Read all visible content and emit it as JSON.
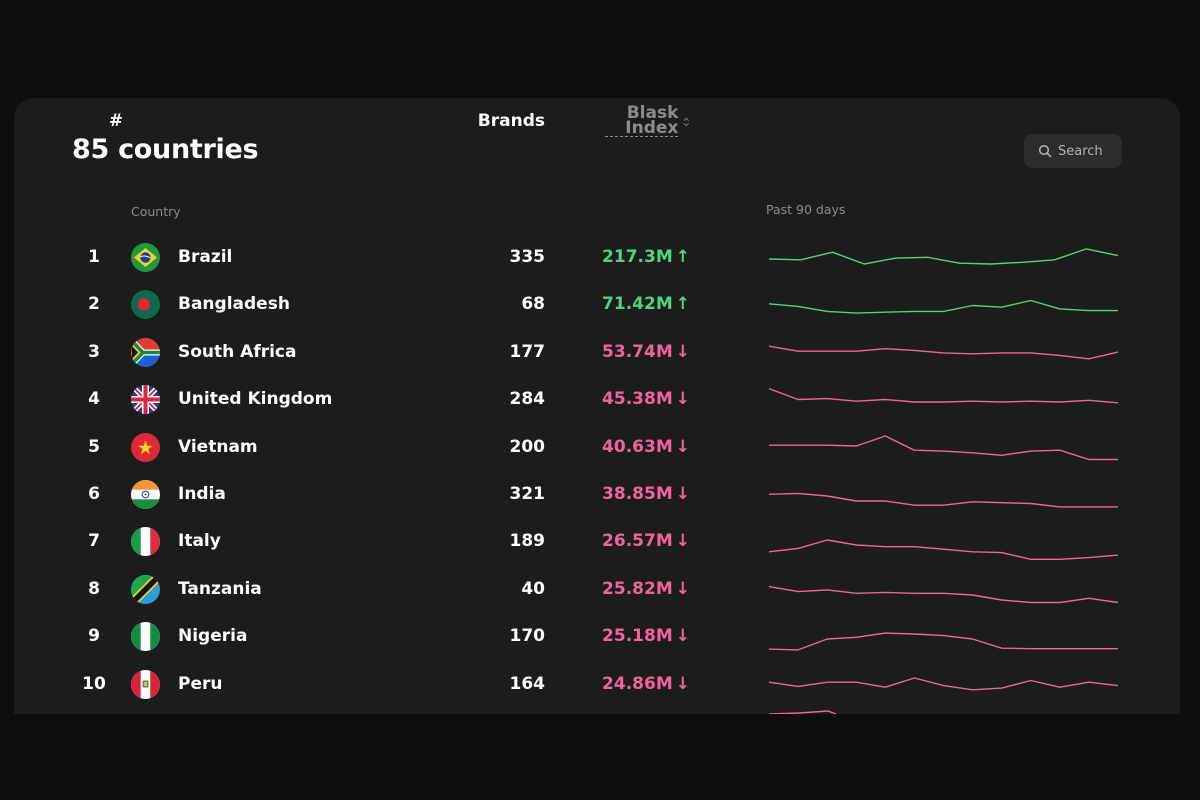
{
  "header": {
    "title": "85 countries",
    "search_label": "Search"
  },
  "columns": {
    "rank": "#",
    "country": "Country",
    "brands": "Brands",
    "blask": "Blask Index",
    "trend": "Past 90 days"
  },
  "rows": [
    {
      "rank": "1",
      "country": "Brazil",
      "brands": "335",
      "blask": "217.3M",
      "arrow": "↑",
      "direction": "up",
      "flag": "brazil-flag-icon",
      "trend": [
        62,
        60,
        78,
        50,
        64,
        66,
        52,
        50,
        54,
        60,
        86,
        70
      ]
    },
    {
      "rank": "2",
      "country": "Bangladesh",
      "brands": "68",
      "blask": "71.42M",
      "arrow": "↑",
      "direction": "up",
      "flag": "bangladesh-flag-icon",
      "trend": [
        68,
        62,
        50,
        46,
        48,
        50,
        50,
        64,
        60,
        76,
        56,
        52,
        52
      ]
    },
    {
      "rank": "3",
      "country": "South Africa",
      "brands": "177",
      "blask": "53.74M",
      "arrow": "↓",
      "direction": "down",
      "flag": "south-africa-flag-icon",
      "trend": [
        80,
        68,
        68,
        68,
        74,
        70,
        64,
        62,
        64,
        64,
        58,
        50,
        66
      ]
    },
    {
      "rank": "4",
      "country": "United Kingdom",
      "brands": "284",
      "blask": "45.38M",
      "arrow": "↓",
      "direction": "down",
      "flag": "uk-flag-icon",
      "trend": [
        92,
        66,
        68,
        62,
        66,
        60,
        60,
        62,
        60,
        62,
        60,
        64,
        58
      ]
    },
    {
      "rank": "5",
      "country": "Vietnam",
      "brands": "200",
      "blask": "40.63M",
      "arrow": "↓",
      "direction": "down",
      "flag": "vietnam-flag-icon",
      "trend": [
        70,
        70,
        70,
        68,
        92,
        58,
        56,
        52,
        46,
        56,
        58,
        36,
        36
      ]
    },
    {
      "rank": "6",
      "country": "India",
      "brands": "321",
      "blask": "38.85M",
      "arrow": "↓",
      "direction": "down",
      "flag": "india-flag-icon",
      "trend": [
        66,
        68,
        62,
        50,
        50,
        40,
        40,
        48,
        46,
        44,
        36,
        36,
        36
      ]
    },
    {
      "rank": "7",
      "country": "Italy",
      "brands": "189",
      "blask": "26.57M",
      "arrow": "↓",
      "direction": "down",
      "flag": "italy-flag-icon",
      "trend": [
        42,
        50,
        70,
        58,
        54,
        54,
        48,
        42,
        40,
        24,
        24,
        28,
        34
      ]
    },
    {
      "rank": "8",
      "country": "Tanzania",
      "brands": "40",
      "blask": "25.82M",
      "arrow": "↓",
      "direction": "down",
      "flag": "tanzania-flag-icon",
      "trend": [
        72,
        60,
        64,
        56,
        58,
        56,
        56,
        52,
        40,
        34,
        34,
        44,
        34
      ]
    },
    {
      "rank": "9",
      "country": "Nigeria",
      "brands": "170",
      "blask": "25.18M",
      "arrow": "↓",
      "direction": "down",
      "flag": "nigeria-flag-icon",
      "trend": [
        36,
        34,
        60,
        64,
        74,
        72,
        68,
        60,
        38,
        37,
        37,
        37,
        37
      ]
    },
    {
      "rank": "10",
      "country": "Peru",
      "brands": "164",
      "blask": "24.86M",
      "arrow": "↓",
      "direction": "down",
      "flag": "peru-flag-icon",
      "trend": [
        70,
        60,
        70,
        70,
        58,
        80,
        62,
        52,
        56,
        74,
        58,
        70,
        62
      ]
    }
  ],
  "colors": {
    "up": "#4fd47f",
    "down": "#f0649a",
    "panel": "#1c1c1c"
  }
}
